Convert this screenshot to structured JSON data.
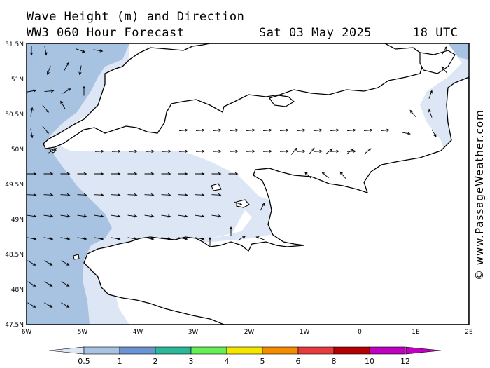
{
  "header": {
    "title": "Wave Height (m) and Direction",
    "model": "WW3 060 Hour Forecast",
    "date": "Sat 03 May 2025",
    "time": "18 UTC"
  },
  "credit": "© www.PassageWeather.com",
  "axes": {
    "lat_labels": [
      "51.5N",
      "51N",
      "50.5N",
      "50N",
      "49.5N",
      "49N",
      "48.5N",
      "48N",
      "47.5N"
    ],
    "lon_labels": [
      "6W",
      "5W",
      "4W",
      "3W",
      "2W",
      "1W",
      "0",
      "1E",
      "2E"
    ]
  },
  "legend": {
    "labels": [
      "0.5",
      "1",
      "2",
      "3",
      "4",
      "5",
      "6",
      "8",
      "10",
      "12"
    ],
    "colors": [
      "#dce6f5",
      "#a8c2e2",
      "#6a95d2",
      "#2ab79a",
      "#66ee55",
      "#f5e600",
      "#f58c00",
      "#e83c3c",
      "#b40000",
      "#c000c0"
    ]
  },
  "colors": {
    "sea_low": "#dce6f5",
    "sea_mid": "#a8c2e2",
    "land": "#ffffff",
    "coast": "#000000"
  }
}
